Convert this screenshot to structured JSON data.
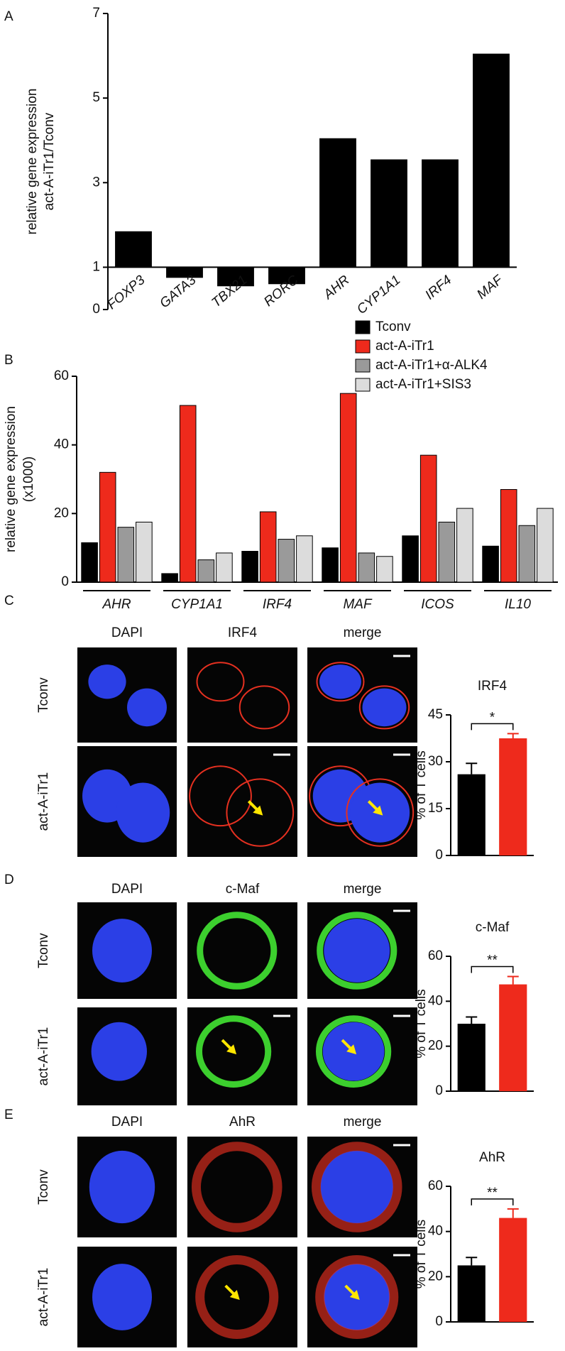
{
  "chart_data": [
    {
      "type": "bar",
      "panel": "A",
      "ylabel": [
        "relative gene expression",
        "act-A-iTr1/Tconv"
      ],
      "categories": [
        "FOXP3",
        "GATA3",
        "TBX21",
        "RORC",
        "AHR",
        "CYP1A1",
        "IRF4",
        "MAF"
      ],
      "values": [
        1.85,
        0.75,
        0.55,
        0.6,
        4.05,
        3.55,
        3.55,
        6.05
      ],
      "color": "#000000",
      "baseline": 1,
      "ylim": [
        0,
        7
      ],
      "yticks": [
        0,
        1,
        3,
        5,
        7
      ]
    },
    {
      "type": "bar",
      "panel": "B",
      "ylabel": [
        "relative gene expression",
        "(x1000)"
      ],
      "categories": [
        "AHR",
        "CYP1A1",
        "IRF4",
        "MAF",
        "ICOS",
        "IL10"
      ],
      "series": [
        {
          "name": "Tconv",
          "color": "#000000",
          "values": [
            11.5,
            2.5,
            9,
            10,
            13.5,
            10.5
          ]
        },
        {
          "name": "act-A-iTr1",
          "color": "#ee2a1c",
          "values": [
            32,
            51.5,
            20.5,
            55,
            37,
            27
          ]
        },
        {
          "name": "act-A-iTr1+α-ALK4",
          "color": "#9a9a9a",
          "values": [
            16,
            6.5,
            12.5,
            8.5,
            17.5,
            16.5
          ]
        },
        {
          "name": "act-A-iTr1+SIS3",
          "color": "#dcdcdc",
          "values": [
            17.5,
            8.5,
            13.5,
            7.5,
            21.5,
            21.5
          ]
        }
      ],
      "ylim": [
        0,
        60
      ],
      "yticks": [
        0,
        20,
        40,
        60
      ],
      "legend": "top-right"
    },
    {
      "type": "bar",
      "title": "IRF4",
      "ylabel": "% of T cells",
      "values": [
        26,
        37.5
      ],
      "errors": [
        3.5,
        1.5
      ],
      "colors": [
        "#000000",
        "#ee2a1c"
      ],
      "significance": "*",
      "ylim": [
        0,
        45
      ],
      "yticks": [
        0,
        15,
        30,
        45
      ]
    },
    {
      "type": "bar",
      "title": "c-Maf",
      "ylabel": "% of T cells",
      "values": [
        30,
        47.5
      ],
      "errors": [
        3,
        3.5
      ],
      "colors": [
        "#000000",
        "#ee2a1c"
      ],
      "significance": "**",
      "ylim": [
        0,
        60
      ],
      "yticks": [
        0,
        20,
        40,
        60
      ]
    },
    {
      "type": "bar",
      "title": "AhR",
      "ylabel": "% of T cells",
      "values": [
        25,
        46
      ],
      "errors": [
        3.5,
        4
      ],
      "colors": [
        "#000000",
        "#ee2a1c"
      ],
      "significance": "**",
      "ylim": [
        0,
        60
      ],
      "yticks": [
        0,
        20,
        40,
        60
      ]
    }
  ],
  "figure": {
    "panels": [
      {
        "label": "C",
        "columns": [
          "DAPI",
          "IRF4",
          "merge"
        ],
        "rows": [
          "Tconv",
          "act-A-iTr1"
        ]
      },
      {
        "label": "D",
        "columns": [
          "DAPI",
          "c-Maf",
          "merge"
        ],
        "rows": [
          "Tconv",
          "act-A-iTr1"
        ]
      },
      {
        "label": "E",
        "columns": [
          "DAPI",
          "AhR",
          "merge"
        ],
        "rows": [
          "Tconv",
          "act-A-iTr1"
        ]
      }
    ]
  }
}
